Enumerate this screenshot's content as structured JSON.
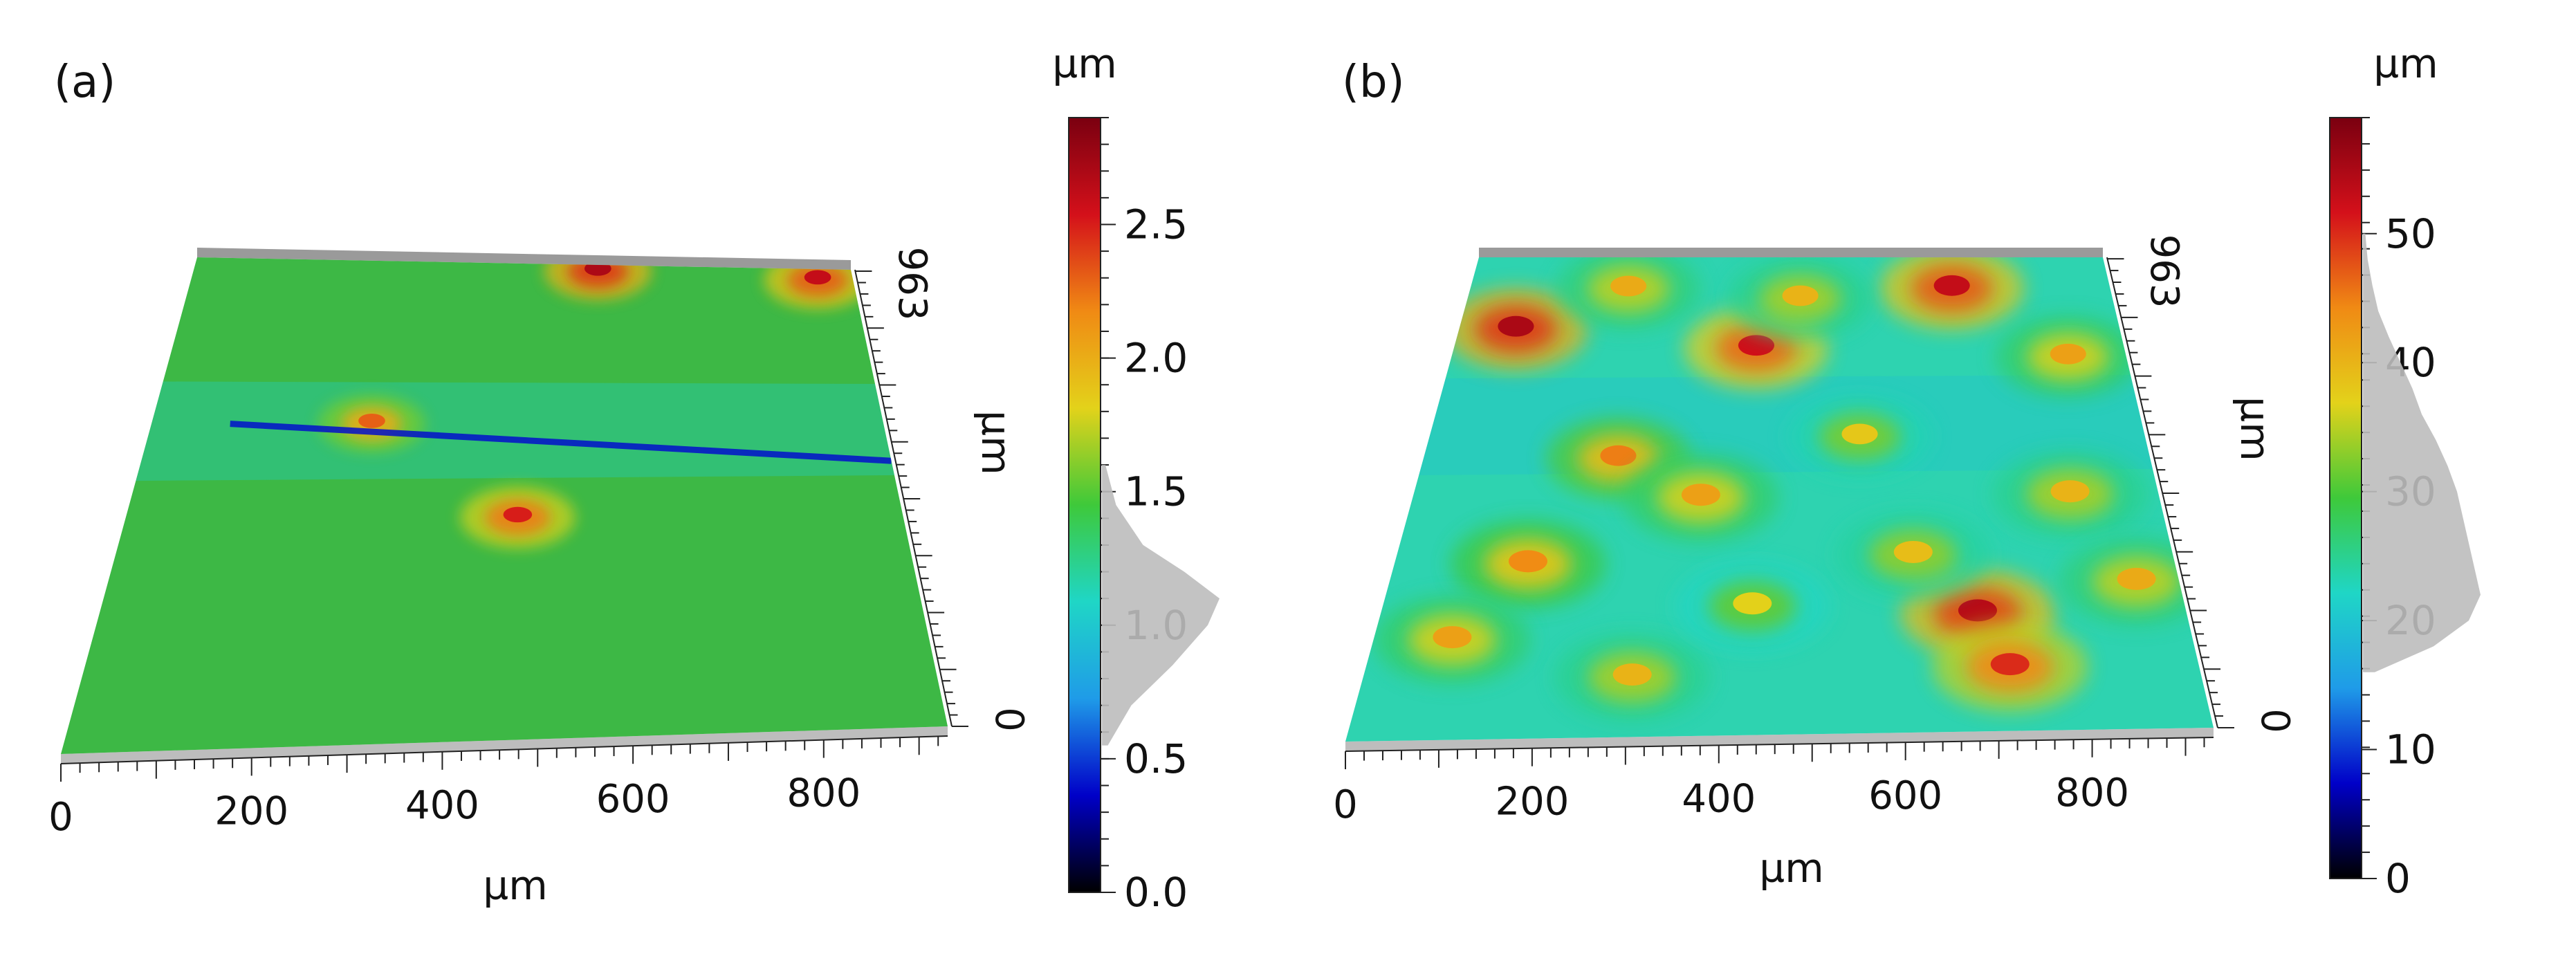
{
  "chart_data": [
    {
      "panel": "(a)",
      "type": "heatmap",
      "subtype": "3d-surface-topography",
      "xlabel": "µm",
      "depth_label": "µm",
      "x_ticks": [
        0,
        200,
        400,
        600,
        800
      ],
      "x_range": [
        0,
        930
      ],
      "depth_ticks": [
        0,
        963
      ],
      "depth_range": [
        0,
        963
      ],
      "colorbar": {
        "unit": "µm",
        "range": [
          0.0,
          2.9
        ],
        "ticks": [
          "0.0",
          "0.5",
          "1.0",
          "1.5",
          "2.0",
          "2.5"
        ],
        "colors": [
          "#000000",
          "#0000c8",
          "#1f9be8",
          "#1fd6c6",
          "#3ec93a",
          "#e3d21a",
          "#f08a14",
          "#d4101a",
          "#7a0010"
        ]
      },
      "height_histogram": {
        "values": [
          0.55,
          0.7,
          0.85,
          1.0,
          1.1,
          1.2,
          1.3,
          1.45,
          1.6
        ],
        "counts": [
          0.05,
          0.25,
          0.6,
          0.9,
          1.0,
          0.7,
          0.35,
          0.12,
          0.03
        ]
      },
      "base_color": "#3db845",
      "features": [
        {
          "kind": "peak",
          "x_um": 570,
          "y_um": 950,
          "height_um": 2.7
        },
        {
          "kind": "peak",
          "x_um": 880,
          "y_um": 940,
          "height_um": 2.6
        },
        {
          "kind": "peak",
          "x_um": 280,
          "y_um": 640,
          "height_um": 2.3
        },
        {
          "kind": "peak",
          "x_um": 470,
          "y_um": 450,
          "height_um": 2.5
        },
        {
          "kind": "scratch",
          "x_um": 100,
          "y_um": 640,
          "x2_um": 930,
          "y2_um": 560,
          "height_um": 0.4
        }
      ]
    },
    {
      "panel": "(b)",
      "type": "heatmap",
      "subtype": "3d-surface-topography",
      "xlabel": "µm",
      "depth_label": "µm",
      "x_ticks": [
        0,
        200,
        400,
        600,
        800
      ],
      "x_range": [
        0,
        930
      ],
      "depth_ticks": [
        0,
        963
      ],
      "depth_range": [
        0,
        963
      ],
      "colorbar": {
        "unit": "µm",
        "range": [
          0,
          59
        ],
        "ticks": [
          "0",
          "10",
          "20",
          "30",
          "40",
          "50"
        ],
        "colors": [
          "#000000",
          "#0000c8",
          "#1f9be8",
          "#1fd6c6",
          "#3ec93a",
          "#e3d21a",
          "#f08a14",
          "#d4101a",
          "#7a0010"
        ]
      },
      "height_histogram": {
        "values": [
          16,
          18,
          20,
          22,
          24,
          26,
          28,
          30,
          32,
          34,
          36,
          38,
          40,
          42,
          44,
          46,
          48,
          50
        ],
        "counts": [
          0.1,
          0.6,
          0.9,
          1.0,
          0.95,
          0.9,
          0.85,
          0.8,
          0.72,
          0.62,
          0.5,
          0.42,
          0.32,
          0.22,
          0.13,
          0.08,
          0.04,
          0.02
        ]
      },
      "base_color": "#2ed3b0",
      "features": [
        {
          "kind": "peak",
          "x_um": 80,
          "y_um": 820,
          "height_um": 55
        },
        {
          "kind": "peak",
          "x_um": 420,
          "y_um": 780,
          "height_um": 52
        },
        {
          "kind": "peak",
          "x_um": 700,
          "y_um": 900,
          "height_um": 53
        },
        {
          "kind": "peak",
          "x_um": 690,
          "y_um": 240,
          "height_um": 54
        },
        {
          "kind": "peak",
          "x_um": 720,
          "y_um": 130,
          "height_um": 50
        },
        {
          "kind": "peak",
          "x_um": 250,
          "y_um": 560,
          "height_um": 45
        },
        {
          "kind": "peak",
          "x_um": 360,
          "y_um": 480,
          "height_um": 42
        },
        {
          "kind": "peak",
          "x_um": 160,
          "y_um": 350,
          "height_um": 44
        },
        {
          "kind": "peak",
          "x_um": 90,
          "y_um": 200,
          "height_um": 42
        },
        {
          "kind": "peak",
          "x_um": 300,
          "y_um": 120,
          "height_um": 40
        },
        {
          "kind": "peak",
          "x_um": 820,
          "y_um": 480,
          "height_um": 40
        },
        {
          "kind": "peak",
          "x_um": 560,
          "y_um": 600,
          "height_um": 38
        },
        {
          "kind": "peak",
          "x_um": 480,
          "y_um": 880,
          "height_um": 40
        },
        {
          "kind": "peak",
          "x_um": 850,
          "y_um": 760,
          "height_um": 42
        },
        {
          "kind": "peak",
          "x_um": 230,
          "y_um": 900,
          "height_um": 41
        },
        {
          "kind": "peak",
          "x_um": 620,
          "y_um": 360,
          "height_um": 39
        },
        {
          "kind": "peak",
          "x_um": 430,
          "y_um": 260,
          "height_um": 37
        },
        {
          "kind": "peak",
          "x_um": 880,
          "y_um": 300,
          "height_um": 41
        }
      ]
    }
  ]
}
